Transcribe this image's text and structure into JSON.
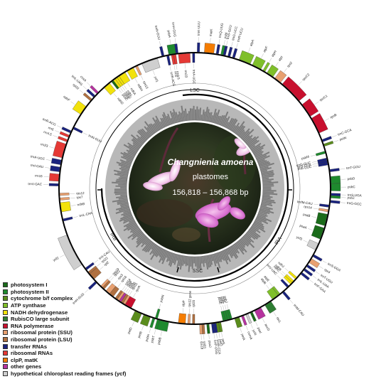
{
  "title": {
    "species": "Changnienia amoena",
    "subtitle": "plastomes",
    "size_range": "156,818 – 156,868 bp"
  },
  "regions": {
    "lsc": "LSC",
    "ira": "IRA",
    "irb": "IRB",
    "ssc": "SSC"
  },
  "colors": {
    "photosystem_i": "#1a6b1a",
    "photosystem_ii": "#1e8a2e",
    "cytochrome": "#5a8c1c",
    "atp_synthase": "#7fbf2a",
    "nadh": "#f2e20c",
    "rubisco": "#2e7d32",
    "rna_polymerase": "#c8102e",
    "ribosomal_ssu": "#e8a070",
    "ribosomal_lsu": "#b07040",
    "transfer_rna": "#1a237e",
    "ribosomal_rna": "#e53935",
    "clpp_matk": "#f57c00",
    "other": "#b5339e",
    "ycf": "#cfcfcf"
  },
  "legend": [
    {
      "label": "photosystem I",
      "color_key": "photosystem_i"
    },
    {
      "label": "photosystem II",
      "color_key": "photosystem_ii"
    },
    {
      "label": "cytochrome b/f complex",
      "color_key": "cytochrome"
    },
    {
      "label": "ATP synthase",
      "color_key": "atp_synthase"
    },
    {
      "label": "NADH dehydrogenase",
      "color_key": "nadh"
    },
    {
      "label": "RubisCO large subunit",
      "color_key": "rubisco"
    },
    {
      "label": "RNA polymerase",
      "color_key": "rna_polymerase"
    },
    {
      "label": "ribosomal protein (SSU)",
      "color_key": "ribosomal_ssu"
    },
    {
      "label": "ribosomal protein (LSU)",
      "color_key": "ribosomal_lsu"
    },
    {
      "label": "transfer RNAs",
      "color_key": "transfer_rna"
    },
    {
      "label": "ribosomal RNAs",
      "color_key": "ribosomal_rna"
    },
    {
      "label": "clpP, matK",
      "color_key": "clpp_matk"
    },
    {
      "label": "other genes",
      "color_key": "other"
    },
    {
      "label": "hypothetical chloroplast reading frames (ycf)",
      "color_key": "ycf"
    }
  ],
  "genes": [
    {
      "name": "psbA",
      "cat": "photosystem_ii",
      "a": 349,
      "w": 3,
      "out": true
    },
    {
      "name": "trnH-GUG",
      "cat": "transfer_rna",
      "a": 352,
      "w": 1,
      "out": true
    },
    {
      "name": "trnK-UUU",
      "cat": "transfer_rna",
      "a": 1,
      "w": 1,
      "out": true
    },
    {
      "name": "matK",
      "cat": "clpp_matk",
      "a": 4,
      "w": 4,
      "out": true
    },
    {
      "name": "trnQ-UUG",
      "cat": "transfer_rna",
      "a": 9,
      "w": 1,
      "out": true
    },
    {
      "name": "psbI",
      "cat": "photosystem_ii",
      "a": 11,
      "w": 1,
      "out": true
    },
    {
      "name": "trnS-GCU",
      "cat": "transfer_rna",
      "a": 12,
      "w": 1,
      "out": true
    },
    {
      "name": "trnG-UCC",
      "cat": "transfer_rna",
      "a": 14,
      "w": 1,
      "out": true
    },
    {
      "name": "trnR-UCU",
      "cat": "transfer_rna",
      "a": 16,
      "w": 1,
      "out": true
    },
    {
      "name": "atpA",
      "cat": "atp_synthase",
      "a": 19,
      "w": 5,
      "out": true
    },
    {
      "name": "atpF",
      "cat": "atp_synthase",
      "a": 25,
      "w": 4,
      "out": true
    },
    {
      "name": "atpH",
      "cat": "atp_synthase",
      "a": 30,
      "w": 1,
      "out": true
    },
    {
      "name": "atpI",
      "cat": "atp_synthase",
      "a": 32,
      "w": 3,
      "out": true
    },
    {
      "name": "rps2",
      "cat": "ribosomal_ssu",
      "a": 36,
      "w": 3,
      "out": true
    },
    {
      "name": "rpoC2",
      "cat": "rna_polymerase",
      "a": 40,
      "w": 10,
      "out": true
    },
    {
      "name": "rpoC1",
      "cat": "rna_polymerase",
      "a": 52,
      "w": 6,
      "out": true
    },
    {
      "name": "rpoB",
      "cat": "rna_polymerase",
      "a": 59,
      "w": 7,
      "out": true
    },
    {
      "name": "trnC-GCA",
      "cat": "transfer_rna",
      "a": 69,
      "w": 1,
      "out": true
    },
    {
      "name": "petN",
      "cat": "cytochrome",
      "a": 71,
      "w": 1,
      "out": true
    },
    {
      "name": "psbM",
      "cat": "photosystem_ii",
      "a": 74,
      "w": 1,
      "out": false
    },
    {
      "name": "trnD-GUC",
      "cat": "transfer_rna",
      "a": 77,
      "w": 1,
      "out": false
    },
    {
      "name": "trnY-GUA",
      "cat": "transfer_rna",
      "a": 78,
      "w": 1,
      "out": false
    },
    {
      "name": "trnE-UUC",
      "cat": "transfer_rna",
      "a": 79,
      "w": 1,
      "out": false
    },
    {
      "name": "trnT-GGU",
      "cat": "transfer_rna",
      "a": 82,
      "w": 1,
      "out": true
    },
    {
      "name": "psbD",
      "cat": "photosystem_ii",
      "a": 85,
      "w": 3,
      "out": true
    },
    {
      "name": "psbC",
      "cat": "photosystem_ii",
      "a": 88,
      "w": 3,
      "out": true
    },
    {
      "name": "trnS-UGA",
      "cat": "transfer_rna",
      "a": 92,
      "w": 1,
      "out": true
    },
    {
      "name": "psbZ",
      "cat": "photosystem_ii",
      "a": 93,
      "w": 1,
      "out": true
    },
    {
      "name": "trnG-GCC",
      "cat": "transfer_rna",
      "a": 95,
      "w": 1,
      "out": true
    },
    {
      "name": "trnfM-CAU",
      "cat": "transfer_rna",
      "a": 97,
      "w": 1,
      "out": false
    },
    {
      "name": "rps14",
      "cat": "ribosomal_ssu",
      "a": 99,
      "w": 1,
      "out": false
    },
    {
      "name": "psaB",
      "cat": "photosystem_i",
      "a": 101,
      "w": 5,
      "out": false
    },
    {
      "name": "psaA",
      "cat": "photosystem_i",
      "a": 107,
      "w": 5,
      "out": false
    },
    {
      "name": "ycf3",
      "cat": "ycf",
      "a": 114,
      "w": 3,
      "out": false
    },
    {
      "name": "trnS-GGA",
      "cat": "transfer_rna",
      "a": 119,
      "w": 1,
      "out": true
    },
    {
      "name": "rps4",
      "cat": "ribosomal_ssu",
      "a": 121,
      "w": 2,
      "out": true
    },
    {
      "name": "trnT-UGU",
      "cat": "transfer_rna",
      "a": 124,
      "w": 1,
      "out": true
    },
    {
      "name": "trnL-UAA",
      "cat": "transfer_rna",
      "a": 126,
      "w": 1,
      "out": true
    },
    {
      "name": "trnF-GAA",
      "cat": "transfer_rna",
      "a": 128,
      "w": 1,
      "out": true
    },
    {
      "name": "ndhJ",
      "cat": "nadh",
      "a": 131,
      "w": 1,
      "out": false
    },
    {
      "name": "ndhK",
      "cat": "nadh",
      "a": 133,
      "w": 1,
      "out": false
    },
    {
      "name": "ndhC",
      "cat": "nadh",
      "a": 134,
      "w": 1,
      "out": false
    },
    {
      "name": "trnV-UAC",
      "cat": "transfer_rna",
      "a": 136,
      "w": 1,
      "out": false
    },
    {
      "name": "trnM-CAU",
      "cat": "transfer_rna",
      "a": 139,
      "w": 1,
      "out": true
    },
    {
      "name": "atpE",
      "cat": "atp_synthase",
      "a": 141,
      "w": 1,
      "out": false
    },
    {
      "name": "atpB",
      "cat": "atp_synthase",
      "a": 142,
      "w": 3,
      "out": false
    },
    {
      "name": "rbcL",
      "cat": "rubisco",
      "a": 146,
      "w": 3,
      "out": true
    },
    {
      "name": "accD",
      "cat": "other",
      "a": 151,
      "w": 3,
      "out": true
    },
    {
      "name": "psaI",
      "cat": "photosystem_i",
      "a": 155,
      "w": 1,
      "out": true
    },
    {
      "name": "ycf4",
      "cat": "ycf",
      "a": 157,
      "w": 1,
      "out": true
    },
    {
      "name": "cemA",
      "cat": "other",
      "a": 159,
      "w": 1,
      "out": true
    },
    {
      "name": "petA",
      "cat": "cytochrome",
      "a": 161,
      "w": 2,
      "out": true
    },
    {
      "name": "psbJ",
      "cat": "photosystem_ii",
      "a": 164,
      "w": 1,
      "out": false
    },
    {
      "name": "psbL",
      "cat": "photosystem_ii",
      "a": 165,
      "w": 1,
      "out": false
    },
    {
      "name": "psbF",
      "cat": "photosystem_ii",
      "a": 166,
      "w": 1,
      "out": false
    },
    {
      "name": "psbE",
      "cat": "photosystem_ii",
      "a": 167,
      "w": 1,
      "out": false
    },
    {
      "name": "petL",
      "cat": "cytochrome",
      "a": 169,
      "w": 1,
      "out": true
    },
    {
      "name": "petG",
      "cat": "cytochrome",
      "a": 170,
      "w": 1,
      "out": true
    },
    {
      "name": "trnW-CCA",
      "cat": "transfer_rna",
      "a": 171,
      "w": 1,
      "out": true
    },
    {
      "name": "trnP-UGG",
      "cat": "transfer_rna",
      "a": 172,
      "w": 1,
      "out": true
    },
    {
      "name": "psaJ",
      "cat": "photosystem_i",
      "a": 174,
      "w": 1,
      "out": true
    },
    {
      "name": "rpl33",
      "cat": "ribosomal_lsu",
      "a": 176,
      "w": 1,
      "out": true
    },
    {
      "name": "rps18",
      "cat": "ribosomal_ssu",
      "a": 177,
      "w": 1,
      "out": true
    },
    {
      "name": "rpl20",
      "cat": "ribosomal_lsu",
      "a": 180,
      "w": 1,
      "out": false
    },
    {
      "name": "rps12 gene",
      "cat": "ribosomal_ssu",
      "a": 182,
      "w": 1,
      "out": false
    },
    {
      "name": "clpP",
      "cat": "clpp_matk",
      "a": 184,
      "w": 3,
      "out": false
    },
    {
      "name": "psbB",
      "cat": "photosystem_ii",
      "a": 191,
      "w": 4,
      "out": true
    },
    {
      "name": "psbT",
      "cat": "photosystem_ii",
      "a": 195,
      "w": 1,
      "out": true
    },
    {
      "name": "psbN",
      "cat": "photosystem_ii",
      "a": 196,
      "w": 1,
      "out": false
    },
    {
      "name": "psbH",
      "cat": "photosystem_ii",
      "a": 197,
      "w": 1,
      "out": true
    },
    {
      "name": "petB",
      "cat": "cytochrome",
      "a": 199,
      "w": 3,
      "out": true
    },
    {
      "name": "petD",
      "cat": "cytochrome",
      "a": 203,
      "w": 3,
      "out": true
    },
    {
      "name": "rpoA",
      "cat": "rna_polymerase",
      "a": 208,
      "w": 3,
      "out": false
    },
    {
      "name": "rps11",
      "cat": "ribosomal_ssu",
      "a": 211,
      "w": 1,
      "out": false
    },
    {
      "name": "rpl36",
      "cat": "ribosomal_lsu",
      "a": 212,
      "w": 1,
      "out": false
    },
    {
      "name": "infA",
      "cat": "other",
      "a": 213,
      "w": 1,
      "out": false
    },
    {
      "name": "rps8",
      "cat": "ribosomal_ssu",
      "a": 214,
      "w": 1,
      "out": false
    },
    {
      "name": "rpl14",
      "cat": "ribosomal_lsu",
      "a": 215,
      "w": 1,
      "out": false
    },
    {
      "name": "rpl16",
      "cat": "ribosomal_lsu",
      "a": 217,
      "w": 2,
      "out": false
    },
    {
      "name": "rps3",
      "cat": "ribosomal_ssu",
      "a": 219,
      "w": 2,
      "out": false
    },
    {
      "name": "rpl22",
      "cat": "ribosomal_lsu",
      "a": 222,
      "w": 1,
      "out": false
    },
    {
      "name": "rps19",
      "cat": "ribosomal_ssu",
      "a": 223,
      "w": 1,
      "out": false
    },
    {
      "name": "trnH-GUG",
      "cat": "transfer_rna",
      "a": 226,
      "w": 1,
      "out": true
    },
    {
      "name": "rpl2",
      "cat": "ribosomal_lsu",
      "a": 228,
      "w": 3,
      "out": false
    },
    {
      "name": "rpl23",
      "cat": "ribosomal_lsu",
      "a": 231,
      "w": 1,
      "out": false
    },
    {
      "name": "trnI-CAU",
      "cat": "transfer_rna",
      "a": 233,
      "w": 1,
      "out": false
    },
    {
      "name": "ycf2",
      "cat": "ycf",
      "a": 236,
      "w": 14,
      "out": true
    },
    {
      "name": "trnL-CAA",
      "cat": "transfer_rna",
      "a": 256,
      "w": 1,
      "out": false
    },
    {
      "name": "ndhB",
      "cat": "nadh",
      "a": 260,
      "w": 4,
      "out": false
    },
    {
      "name": "rps7",
      "cat": "ribosomal_ssu",
      "a": 265,
      "w": 1,
      "out": false
    },
    {
      "name": "rps12",
      "cat": "ribosomal_ssu",
      "a": 267,
      "w": 1,
      "out": false
    },
    {
      "name": "trnV-GAC",
      "cat": "transfer_rna",
      "a": 271,
      "w": 1,
      "out": true
    },
    {
      "name": "rrn16",
      "cat": "ribosomal_rna",
      "a": 273,
      "w": 3,
      "out": true
    },
    {
      "name": "trnI-GAU",
      "cat": "transfer_rna",
      "a": 277,
      "w": 2,
      "out": true
    },
    {
      "name": "trnA-UGC",
      "cat": "transfer_rna",
      "a": 280,
      "w": 2,
      "out": true
    },
    {
      "name": "rrn23",
      "cat": "ribosomal_rna",
      "a": 283,
      "w": 6,
      "out": true
    },
    {
      "name": "rrn4.5",
      "cat": "ribosomal_rna",
      "a": 290,
      "w": 1,
      "out": true
    },
    {
      "name": "rrn5",
      "cat": "ribosomal_rna",
      "a": 292,
      "w": 1,
      "out": true
    },
    {
      "name": "trnR-ACG",
      "cat": "transfer_rna",
      "a": 294,
      "w": 1,
      "out": true
    },
    {
      "name": "trnN-GUU",
      "cat": "transfer_rna",
      "a": 296,
      "w": 1,
      "out": false
    },
    {
      "name": "ndhF",
      "cat": "nadh",
      "a": 303,
      "w": 4,
      "out": true
    },
    {
      "name": "rpl32",
      "cat": "ribosomal_lsu",
      "a": 310,
      "w": 1,
      "out": true
    },
    {
      "name": "trnL-UAG",
      "cat": "transfer_rna",
      "a": 312,
      "w": 1,
      "out": true
    },
    {
      "name": "ccsA",
      "cat": "other",
      "a": 314,
      "w": 1,
      "out": true
    },
    {
      "name": "ndhD",
      "cat": "nadh",
      "a": 318,
      "w": 3,
      "out": false
    },
    {
      "name": "psaC",
      "cat": "photosystem_i",
      "a": 322,
      "w": 1,
      "out": false
    },
    {
      "name": "ndhE",
      "cat": "nadh",
      "a": 323,
      "w": 1,
      "out": false
    },
    {
      "name": "ndhG",
      "cat": "nadh",
      "a": 324,
      "w": 1,
      "out": false
    },
    {
      "name": "ndhI",
      "cat": "nadh",
      "a": 325,
      "w": 1,
      "out": false
    },
    {
      "name": "ndhA",
      "cat": "nadh",
      "a": 326,
      "w": 3,
      "out": false
    },
    {
      "name": "ndhH",
      "cat": "nadh",
      "a": 330,
      "w": 3,
      "out": false
    },
    {
      "name": "rps15",
      "cat": "ribosomal_ssu",
      "a": 334,
      "w": 1,
      "out": false
    },
    {
      "name": "ycf1",
      "cat": "ycf",
      "a": 337,
      "w": 7,
      "out": false
    },
    {
      "name": "trnN-GUU",
      "cat": "transfer_rna",
      "a": 346,
      "w": 1,
      "out": true
    },
    {
      "name": "trnR-ACG",
      "cat": "transfer_rna",
      "a": 348,
      "w": 1,
      "out": false
    },
    {
      "name": "rrn5",
      "cat": "ribosomal_rna",
      "a": 350,
      "w": 1,
      "out": false
    },
    {
      "name": "rrn4.5",
      "cat": "ribosomal_rna",
      "a": 351,
      "w": 1,
      "out": false
    },
    {
      "name": "rrn23",
      "cat": "ribosomal_rna",
      "a": 353,
      "w": 5,
      "out": false
    },
    {
      "name": "trnA-UGC",
      "cat": "transfer_rna",
      "a": 359,
      "w": 1,
      "out": false
    }
  ]
}
